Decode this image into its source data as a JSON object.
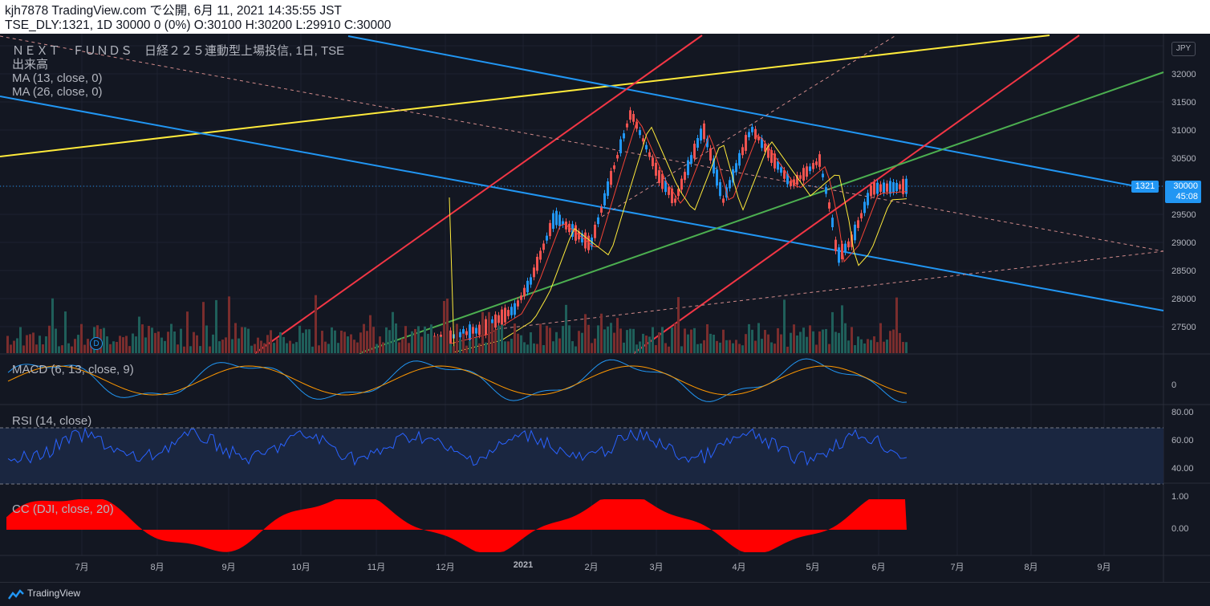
{
  "header": {
    "line1": "kjh7878 TradingView.com で公開, 6月 11, 2021 14:35:55 JST",
    "line2": "TSE_DLY:1321, 1D 30000 0 (0%) O:30100 H:30200 L:29910 C:30000"
  },
  "legend": {
    "title": "ＮＥＸＴ　ＦＵＮＤＳ　日経２２５連動型上場投信, 1日, TSE",
    "volume": "出来高",
    "ma13": "MA (13, close, 0)",
    "ma26": "MA (26, close, 0)"
  },
  "panes": {
    "macd": "MACD (6, 13, close, 9)",
    "rsi": "RSI (14, close)",
    "cc": "CC (DJI, close, 20)"
  },
  "currency": "JPY",
  "price_axis": [
    "32000",
    "31500",
    "31000",
    "30500",
    "30000",
    "29500",
    "29000",
    "28500",
    "28000",
    "27500"
  ],
  "price_tag": {
    "symbol": "1321",
    "price": "30000",
    "countdown": "45:08"
  },
  "macd_axis": [
    "0"
  ],
  "rsi_axis": [
    "80.00",
    "60.00",
    "40.00"
  ],
  "cc_axis": [
    "1.00",
    "0.00"
  ],
  "time_axis": [
    {
      "label": "7月",
      "bold": false
    },
    {
      "label": "8月",
      "bold": false
    },
    {
      "label": "9月",
      "bold": false
    },
    {
      "label": "10月",
      "bold": false
    },
    {
      "label": "11月",
      "bold": false
    },
    {
      "label": "12月",
      "bold": false
    },
    {
      "label": "2021",
      "bold": true
    },
    {
      "label": "2月",
      "bold": false
    },
    {
      "label": "3月",
      "bold": false
    },
    {
      "label": "4月",
      "bold": false
    },
    {
      "label": "5月",
      "bold": false
    },
    {
      "label": "6月",
      "bold": false
    },
    {
      "label": "7月",
      "bold": false
    },
    {
      "label": "8月",
      "bold": false
    },
    {
      "label": "9月",
      "bold": false
    }
  ],
  "dividend_marker": "D",
  "footer": {
    "brand": "TradingView"
  },
  "colors": {
    "background": "#131722",
    "up": "#26a69a",
    "down": "#ef5350",
    "blue_lines": "#2196f3",
    "red_lines": "#f23645",
    "green_line": "#4caf50",
    "yellow_line": "#ffeb3b",
    "ma13": "#f44336",
    "ma26": "#ffeb3b"
  }
}
